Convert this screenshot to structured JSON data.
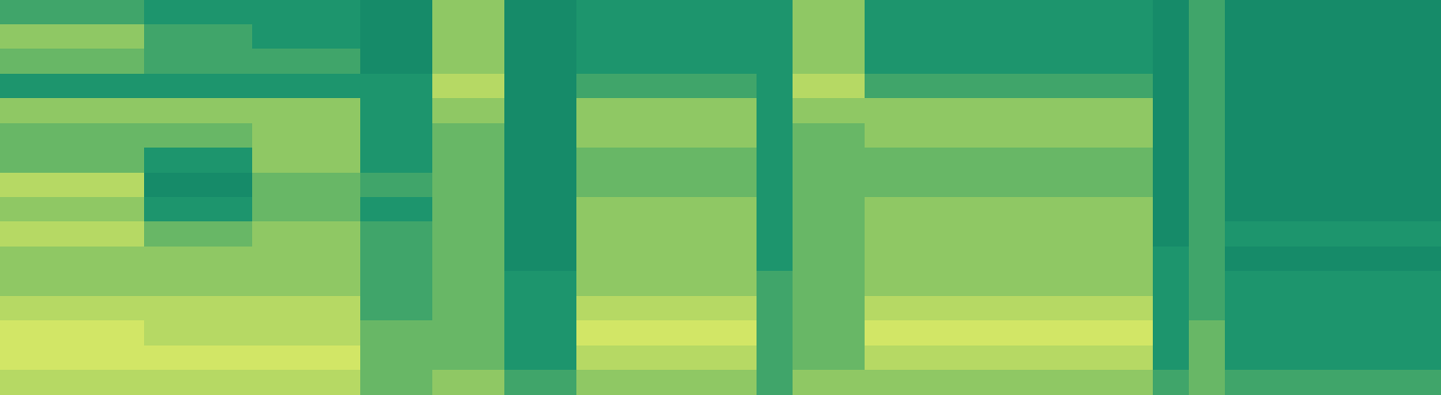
{
  "chart_data": {
    "type": "heatmap",
    "tick_labels": false,
    "zlim": [
      0,
      9
    ],
    "cells": [
      [
        4,
        4,
        4,
        4,
        3,
        3,
        3,
        3,
        3,
        3,
        2,
        2,
        6,
        6,
        2,
        2,
        3,
        3,
        3,
        3,
        3,
        3,
        6,
        6,
        3,
        3,
        3,
        3,
        3,
        3,
        3,
        3,
        2,
        4,
        2,
        2,
        2,
        2,
        2,
        2
      ],
      [
        6,
        6,
        6,
        6,
        4,
        4,
        4,
        3,
        3,
        3,
        2,
        2,
        6,
        6,
        2,
        2,
        3,
        3,
        3,
        3,
        3,
        3,
        6,
        6,
        3,
        3,
        3,
        3,
        3,
        3,
        3,
        3,
        2,
        4,
        2,
        2,
        2,
        2,
        2,
        2
      ],
      [
        5,
        5,
        5,
        5,
        4,
        4,
        4,
        4,
        4,
        4,
        2,
        2,
        6,
        6,
        2,
        2,
        3,
        3,
        3,
        3,
        3,
        3,
        6,
        6,
        3,
        3,
        3,
        3,
        3,
        3,
        3,
        3,
        2,
        4,
        2,
        2,
        2,
        2,
        2,
        2
      ],
      [
        3,
        3,
        3,
        3,
        3,
        3,
        3,
        3,
        3,
        3,
        3,
        3,
        7,
        7,
        2,
        2,
        4,
        4,
        4,
        4,
        4,
        3,
        7,
        7,
        4,
        4,
        4,
        4,
        4,
        4,
        4,
        4,
        2,
        4,
        2,
        2,
        2,
        2,
        2,
        2
      ],
      [
        6,
        6,
        6,
        6,
        6,
        6,
        6,
        6,
        6,
        6,
        3,
        3,
        6,
        6,
        2,
        2,
        6,
        6,
        6,
        6,
        6,
        3,
        6,
        6,
        6,
        6,
        6,
        6,
        6,
        6,
        6,
        6,
        2,
        4,
        2,
        2,
        2,
        2,
        2,
        2
      ],
      [
        5,
        5,
        5,
        5,
        5,
        5,
        5,
        6,
        6,
        6,
        3,
        3,
        5,
        5,
        2,
        2,
        6,
        6,
        6,
        6,
        6,
        3,
        5,
        5,
        6,
        6,
        6,
        6,
        6,
        6,
        6,
        6,
        2,
        4,
        2,
        2,
        2,
        2,
        2,
        2
      ],
      [
        5,
        5,
        5,
        5,
        3,
        3,
        3,
        6,
        6,
        6,
        3,
        3,
        5,
        5,
        2,
        2,
        5,
        5,
        5,
        5,
        5,
        3,
        5,
        5,
        5,
        5,
        5,
        5,
        5,
        5,
        5,
        5,
        2,
        4,
        2,
        2,
        2,
        2,
        2,
        2
      ],
      [
        7,
        7,
        7,
        7,
        2,
        2,
        2,
        5,
        5,
        5,
        4,
        4,
        5,
        5,
        2,
        2,
        5,
        5,
        5,
        5,
        5,
        3,
        5,
        5,
        5,
        5,
        5,
        5,
        5,
        5,
        5,
        5,
        2,
        4,
        2,
        2,
        2,
        2,
        2,
        2
      ],
      [
        6,
        6,
        6,
        6,
        3,
        3,
        3,
        5,
        5,
        5,
        3,
        3,
        5,
        5,
        2,
        2,
        6,
        6,
        6,
        6,
        6,
        3,
        5,
        5,
        6,
        6,
        6,
        6,
        6,
        6,
        6,
        6,
        2,
        4,
        2,
        2,
        2,
        2,
        2,
        2
      ],
      [
        7,
        7,
        7,
        7,
        5,
        5,
        5,
        6,
        6,
        6,
        4,
        4,
        5,
        5,
        2,
        2,
        6,
        6,
        6,
        6,
        6,
        3,
        5,
        5,
        6,
        6,
        6,
        6,
        6,
        6,
        6,
        6,
        2,
        4,
        3,
        3,
        3,
        3,
        3,
        3
      ],
      [
        6,
        6,
        6,
        6,
        6,
        6,
        6,
        6,
        6,
        6,
        4,
        4,
        5,
        5,
        2,
        2,
        6,
        6,
        6,
        6,
        6,
        3,
        5,
        5,
        6,
        6,
        6,
        6,
        6,
        6,
        6,
        6,
        3,
        4,
        2,
        2,
        2,
        2,
        2,
        2
      ],
      [
        6,
        6,
        6,
        6,
        6,
        6,
        6,
        6,
        6,
        6,
        4,
        4,
        5,
        5,
        3,
        3,
        6,
        6,
        6,
        6,
        6,
        4,
        5,
        5,
        6,
        6,
        6,
        6,
        6,
        6,
        6,
        6,
        3,
        4,
        3,
        3,
        3,
        3,
        3,
        3
      ],
      [
        7,
        7,
        7,
        7,
        7,
        7,
        7,
        7,
        7,
        7,
        4,
        4,
        5,
        5,
        3,
        3,
        7,
        7,
        7,
        7,
        7,
        4,
        5,
        5,
        7,
        7,
        7,
        7,
        7,
        7,
        7,
        7,
        3,
        4,
        3,
        3,
        3,
        3,
        3,
        3
      ],
      [
        8,
        8,
        8,
        8,
        7,
        7,
        7,
        7,
        7,
        7,
        5,
        5,
        5,
        5,
        3,
        3,
        8,
        8,
        8,
        8,
        8,
        4,
        5,
        5,
        8,
        8,
        8,
        8,
        8,
        8,
        8,
        8,
        3,
        5,
        3,
        3,
        3,
        3,
        3,
        3
      ],
      [
        8,
        8,
        8,
        8,
        8,
        8,
        8,
        8,
        8,
        8,
        5,
        5,
        5,
        5,
        3,
        3,
        7,
        7,
        7,
        7,
        7,
        4,
        5,
        5,
        7,
        7,
        7,
        7,
        7,
        7,
        7,
        7,
        3,
        5,
        3,
        3,
        3,
        3,
        3,
        3
      ],
      [
        7,
        7,
        7,
        7,
        7,
        7,
        7,
        7,
        7,
        7,
        5,
        5,
        6,
        6,
        4,
        4,
        6,
        6,
        6,
        6,
        6,
        4,
        6,
        6,
        6,
        6,
        6,
        6,
        6,
        6,
        6,
        6,
        4,
        5,
        4,
        4,
        4,
        4,
        4,
        4
      ]
    ]
  }
}
